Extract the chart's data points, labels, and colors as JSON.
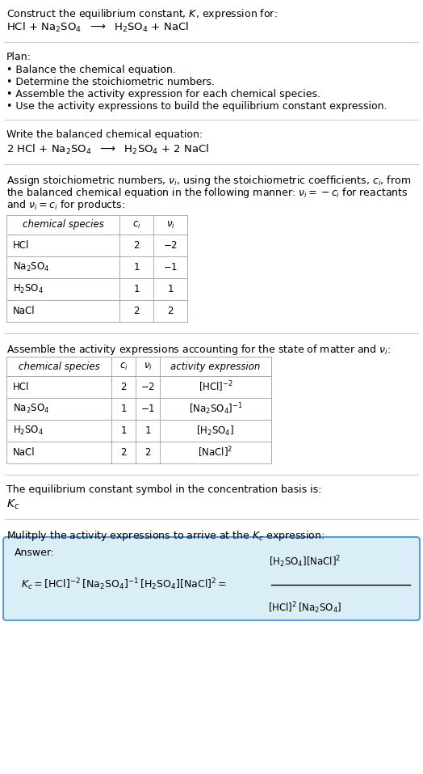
{
  "bg_color": "#ffffff",
  "text_color": "#000000",
  "section1_line1": "Construct the equilibrium constant, $K$, expression for:",
  "section1_line2": "HCl + Na$_2$SO$_4$  $\\longrightarrow$  H$_2$SO$_4$ + NaCl",
  "plan_header": "Plan:",
  "plan_bullets": [
    "• Balance the chemical equation.",
    "• Determine the stoichiometric numbers.",
    "• Assemble the activity expression for each chemical species.",
    "• Use the activity expressions to build the equilibrium constant expression."
  ],
  "balanced_header": "Write the balanced chemical equation:",
  "balanced_eq": "2 HCl + Na$_2$SO$_4$  $\\longrightarrow$  H$_2$SO$_4$ + 2 NaCl",
  "stoich_text": [
    "Assign stoichiometric numbers, $\\nu_i$, using the stoichiometric coefficients, $c_i$, from",
    "the balanced chemical equation in the following manner: $\\nu_i = -c_i$ for reactants",
    "and $\\nu_i = c_i$ for products:"
  ],
  "table1_headers": [
    "chemical species",
    "$c_i$",
    "$\\nu_i$"
  ],
  "table1_rows": [
    [
      "HCl",
      "2",
      "$-2$"
    ],
    [
      "Na$_2$SO$_4$",
      "1",
      "$-1$"
    ],
    [
      "H$_2$SO$_4$",
      "1",
      "$1$"
    ],
    [
      "NaCl",
      "2",
      "$2$"
    ]
  ],
  "activity_header": "Assemble the activity expressions accounting for the state of matter and $\\nu_i$:",
  "table2_headers": [
    "chemical species",
    "$c_i$",
    "$\\nu_i$",
    "activity expression"
  ],
  "table2_rows": [
    [
      "HCl",
      "2",
      "$-2$",
      "$[\\mathrm{HCl}]^{-2}$"
    ],
    [
      "Na$_2$SO$_4$",
      "1",
      "$-1$",
      "$[\\mathrm{Na_2SO_4}]^{-1}$"
    ],
    [
      "H$_2$SO$_4$",
      "1",
      "$1$",
      "$[\\mathrm{H_2SO_4}]$"
    ],
    [
      "NaCl",
      "2",
      "$2$",
      "$[\\mathrm{NaCl}]^2$"
    ]
  ],
  "kc_header": "The equilibrium constant symbol in the concentration basis is:",
  "kc_symbol": "$K_c$",
  "multiply_header": "Mulitply the activity expressions to arrive at the $K_c$ expression:",
  "answer_label": "Answer:",
  "answer_box_color": "#daeef8",
  "answer_box_border": "#5b9bd5",
  "sep_color": "#cccccc",
  "table_border": "#aaaaaa",
  "fs_main": 9.0,
  "fs_small": 8.5,
  "fs_eq": 9.0
}
